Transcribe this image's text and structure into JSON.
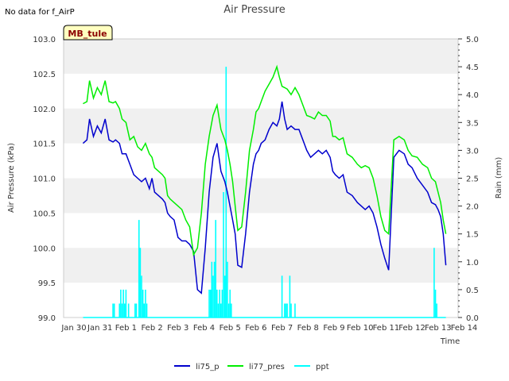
{
  "notice": "No data for f_AirP",
  "badge": "MB_tule",
  "colors": {
    "li75_p": "#0000cd",
    "li77_pres": "#00ee00",
    "ppt": "#00ffff",
    "band": "#f0f0f0"
  },
  "chart_data": {
    "type": "line",
    "title": "Air Pressure",
    "xlabel": "Time",
    "ylabel": "Air Pressure (kPa)",
    "y2label": "Rain (mm)",
    "xlim": [
      0,
      15
    ],
    "ylim": [
      99.0,
      103.0
    ],
    "y2lim": [
      0.0,
      5.0
    ],
    "x_ticks": [
      {
        "x": 0,
        "label": "Jan 30"
      },
      {
        "x": 1,
        "label": "Jan 31"
      },
      {
        "x": 2,
        "label": "Feb 1"
      },
      {
        "x": 3,
        "label": "Feb 2"
      },
      {
        "x": 4,
        "label": "Feb 3"
      },
      {
        "x": 5,
        "label": "Feb 4"
      },
      {
        "x": 6,
        "label": "Feb 5"
      },
      {
        "x": 7,
        "label": "Feb 6"
      },
      {
        "x": 8,
        "label": "Feb 7"
      },
      {
        "x": 9,
        "label": "Feb 8"
      },
      {
        "x": 10,
        "label": "Feb 9"
      },
      {
        "x": 11,
        "label": "Feb 10"
      },
      {
        "x": 12,
        "label": "Feb 11"
      },
      {
        "x": 13,
        "label": "Feb 12"
      },
      {
        "x": 14,
        "label": "Feb 13"
      },
      {
        "x": 15,
        "label": "Feb 14"
      }
    ],
    "y_ticks": [
      "99.0",
      "99.5",
      "100.0",
      "100.5",
      "101.0",
      "101.5",
      "102.0",
      "102.5",
      "103.0"
    ],
    "y2_ticks": [
      "0.0",
      "0.5",
      "1.0",
      "1.5",
      "2.0",
      "2.5",
      "3.0",
      "3.5",
      "4.0",
      "4.5",
      "5.0"
    ],
    "legend": [
      "li75_p",
      "li77_pres",
      "ppt"
    ],
    "series": [
      {
        "name": "li75_p",
        "axis": "left",
        "x": [
          0.35,
          0.5,
          0.6,
          0.75,
          0.9,
          1.05,
          1.2,
          1.35,
          1.5,
          1.6,
          1.75,
          1.85,
          2.0,
          2.15,
          2.3,
          2.45,
          2.6,
          2.75,
          2.9,
          3.0,
          3.1,
          3.25,
          3.4,
          3.5,
          3.6,
          3.7,
          3.85,
          4.0,
          4.15,
          4.3,
          4.45,
          4.6,
          4.75,
          4.9,
          5.05,
          5.2,
          5.35,
          5.5,
          5.65,
          5.8,
          5.9,
          6.0,
          6.1,
          6.2,
          6.3,
          6.45,
          6.6,
          6.75,
          6.9,
          7.0,
          7.1,
          7.2,
          7.35,
          7.5,
          7.65,
          7.8,
          7.9,
          8.0,
          8.1,
          8.2,
          8.35,
          8.5,
          8.65,
          8.8,
          8.95,
          9.1,
          9.25,
          9.4,
          9.55,
          9.7,
          9.85,
          9.95,
          10.05,
          10.2,
          10.35,
          10.5,
          10.7,
          10.9,
          11.05,
          11.2,
          11.35,
          11.5,
          11.65,
          11.8,
          11.95,
          12.1,
          12.3,
          12.5,
          12.7,
          12.85,
          13.0,
          13.2,
          13.4,
          13.6,
          13.75,
          13.9,
          14.0,
          14.1,
          14.2,
          14.3
        ],
        "y": [
          101.5,
          101.55,
          101.85,
          101.6,
          101.75,
          101.65,
          101.85,
          101.55,
          101.52,
          101.55,
          101.5,
          101.35,
          101.35,
          101.2,
          101.05,
          101.0,
          100.95,
          101.0,
          100.85,
          101.0,
          100.8,
          100.75,
          100.7,
          100.65,
          100.5,
          100.45,
          100.4,
          100.15,
          100.1,
          100.1,
          100.05,
          99.95,
          99.4,
          99.35,
          100.0,
          100.8,
          101.3,
          101.5,
          101.1,
          100.95,
          100.8,
          100.6,
          100.4,
          100.2,
          99.75,
          99.72,
          100.2,
          100.8,
          101.2,
          101.35,
          101.4,
          101.5,
          101.55,
          101.7,
          101.8,
          101.75,
          101.85,
          102.1,
          101.85,
          101.7,
          101.75,
          101.7,
          101.7,
          101.55,
          101.4,
          101.3,
          101.35,
          101.4,
          101.35,
          101.4,
          101.3,
          101.1,
          101.05,
          101.0,
          101.05,
          100.8,
          100.75,
          100.65,
          100.6,
          100.55,
          100.6,
          100.5,
          100.3,
          100.05,
          99.85,
          99.68,
          101.3,
          101.4,
          101.35,
          101.2,
          101.15,
          101.0,
          100.9,
          100.8,
          100.65,
          100.62,
          100.55,
          100.45,
          100.2,
          99.75
        ],
        "note_order_fix": true
      },
      {
        "name": "li77_pres",
        "axis": "left",
        "x": [
          0.35,
          0.5,
          0.6,
          0.75,
          0.9,
          1.05,
          1.2,
          1.35,
          1.5,
          1.6,
          1.75,
          1.85,
          2.0,
          2.15,
          2.3,
          2.45,
          2.6,
          2.75,
          2.9,
          3.0,
          3.1,
          3.25,
          3.4,
          3.5,
          3.6,
          3.7,
          3.85,
          4.0,
          4.15,
          4.3,
          4.45,
          4.6,
          4.75,
          4.9,
          5.05,
          5.2,
          5.35,
          5.5,
          5.65,
          5.8,
          5.9,
          6.0,
          6.1,
          6.2,
          6.3,
          6.45,
          6.6,
          6.75,
          6.9,
          7.0,
          7.1,
          7.2,
          7.35,
          7.5,
          7.65,
          7.8,
          7.9,
          8.0,
          8.1,
          8.2,
          8.35,
          8.5,
          8.65,
          8.8,
          8.95,
          9.1,
          9.25,
          9.4,
          9.55,
          9.7,
          9.85,
          9.95,
          10.05,
          10.2,
          10.35,
          10.5,
          10.7,
          10.9,
          11.05,
          11.2,
          11.35,
          11.5,
          11.65,
          11.8,
          11.95,
          12.1,
          12.3,
          12.5,
          12.7,
          12.85,
          13.0,
          13.2,
          13.4,
          13.6,
          13.75,
          13.9,
          14.0,
          14.1,
          14.2,
          14.3
        ],
        "y": [
          102.07,
          102.1,
          102.4,
          102.15,
          102.3,
          102.2,
          102.4,
          102.1,
          102.08,
          102.1,
          102.0,
          101.85,
          101.8,
          101.55,
          101.6,
          101.45,
          101.4,
          101.5,
          101.35,
          101.3,
          101.15,
          101.1,
          101.05,
          101.0,
          100.75,
          100.7,
          100.65,
          100.6,
          100.55,
          100.4,
          100.3,
          99.9,
          100.0,
          100.5,
          101.2,
          101.6,
          101.9,
          102.05,
          101.7,
          101.55,
          101.4,
          101.2,
          100.95,
          100.6,
          100.25,
          100.3,
          100.8,
          101.4,
          101.7,
          101.95,
          102.0,
          102.1,
          102.25,
          102.35,
          102.45,
          102.6,
          102.45,
          102.32,
          102.3,
          102.28,
          102.2,
          102.3,
          102.2,
          102.05,
          101.9,
          101.88,
          101.85,
          101.95,
          101.9,
          101.9,
          101.82,
          101.6,
          101.6,
          101.55,
          101.58,
          101.35,
          101.3,
          101.2,
          101.15,
          101.18,
          101.15,
          101.0,
          100.75,
          100.45,
          100.25,
          100.2,
          101.55,
          101.6,
          101.55,
          101.4,
          101.32,
          101.3,
          101.2,
          101.15,
          101.0,
          100.95,
          100.8,
          100.65,
          100.4,
          100.2
        ],
        "note_order_fix": true
      },
      {
        "name": "ppt",
        "axis": "right",
        "type": "bar",
        "x": [
          1.5,
          1.55,
          1.75,
          1.8,
          1.85,
          1.9,
          1.95,
          2.0,
          2.1,
          2.35,
          2.4,
          2.5,
          2.55,
          2.6,
          2.65,
          2.7,
          2.75,
          2.8,
          5.2,
          5.25,
          5.3,
          5.35,
          5.4,
          5.45,
          5.5,
          5.55,
          5.6,
          5.65,
          5.7,
          5.75,
          5.8,
          5.85,
          5.9,
          5.95,
          6.0,
          6.05,
          8.0,
          8.1,
          8.15,
          8.2,
          8.3,
          8.35,
          8.5,
          13.85,
          13.9,
          13.95
        ],
        "y": [
          0.25,
          0.25,
          0.25,
          0.5,
          0.25,
          0.5,
          0.25,
          0.5,
          0.25,
          0.25,
          0.25,
          1.75,
          1.25,
          0.75,
          0.5,
          0.25,
          0.5,
          0.25,
          0.5,
          0.5,
          1.0,
          0.75,
          1.0,
          1.75,
          0.5,
          0.25,
          0.5,
          0.25,
          0.5,
          2.25,
          0.75,
          4.5,
          1.0,
          0.25,
          0.5,
          0.25,
          0.75,
          0.25,
          0.25,
          0.25,
          0.75,
          0.25,
          0.25,
          1.25,
          0.5,
          0.25
        ]
      }
    ]
  }
}
